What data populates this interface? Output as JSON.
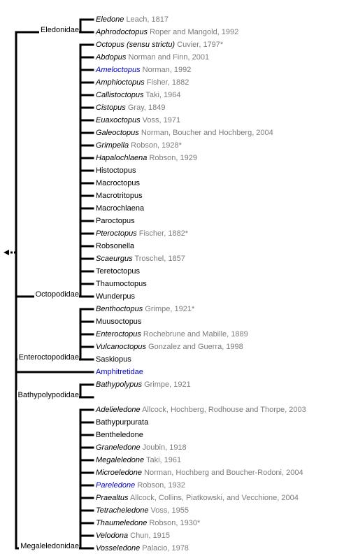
{
  "families": [
    {
      "name": "Eledonidae",
      "leaves": [
        {
          "genus": "Eledone",
          "authority": "Leach, 1817",
          "italic": true,
          "link": false
        },
        {
          "genus": "Aphrodoctopus",
          "authority": "Roper and Mangold, 1992",
          "italic": true,
          "link": false
        }
      ]
    },
    {
      "name": "Octopodidae",
      "leaves": [
        {
          "genus": "Octopus (sensu strictu)",
          "authority": "Cuvier, 1797*",
          "italic": true,
          "link": false
        },
        {
          "genus": "Abdopus",
          "authority": "Norman and Finn, 2001",
          "italic": true,
          "link": false
        },
        {
          "genus": "Ameloctopus",
          "authority": "Norman, 1992",
          "italic": true,
          "link": true
        },
        {
          "genus": "Amphioctopus",
          "authority": "Fisher, 1882",
          "italic": true,
          "link": false
        },
        {
          "genus": "Callistoctopus",
          "authority": "Taki, 1964",
          "italic": true,
          "link": false
        },
        {
          "genus": "Cistopus",
          "authority": "Gray, 1849",
          "italic": true,
          "link": false
        },
        {
          "genus": "Euaxoctopus",
          "authority": "Voss, 1971",
          "italic": true,
          "link": false
        },
        {
          "genus": "Galeoctopus",
          "authority": "Norman, Boucher and Hochberg, 2004",
          "italic": true,
          "link": false
        },
        {
          "genus": "Grimpella",
          "authority": "Robson, 1928*",
          "italic": true,
          "link": false
        },
        {
          "genus": "Hapalochlaena",
          "authority": "Robson, 1929",
          "italic": true,
          "link": false
        },
        {
          "genus": "Histoctopus",
          "authority": "",
          "italic": false,
          "link": false
        },
        {
          "genus": "Macroctopus",
          "authority": "",
          "italic": false,
          "link": false
        },
        {
          "genus": "Macrotritopus",
          "authority": "",
          "italic": false,
          "link": false
        },
        {
          "genus": "Macrochlaena",
          "authority": "",
          "italic": false,
          "link": false
        },
        {
          "genus": "Paroctopus",
          "authority": "",
          "italic": false,
          "link": false
        },
        {
          "genus": "Pteroctopus",
          "authority": "Fischer, 1882*",
          "italic": true,
          "link": false
        },
        {
          "genus": "Robsonella",
          "authority": "",
          "italic": false,
          "link": false
        },
        {
          "genus": "Scaeurgus",
          "authority": "Troschel, 1857",
          "italic": true,
          "link": false
        },
        {
          "genus": "Teretoctopus",
          "authority": "",
          "italic": false,
          "link": false
        },
        {
          "genus": "Thaumoctopus",
          "authority": "",
          "italic": false,
          "link": false
        },
        {
          "genus": "Wunderpus",
          "authority": "",
          "italic": false,
          "link": false
        }
      ]
    },
    {
      "name": "Enteroctopodidae",
      "leaves": [
        {
          "genus": "Benthoctopus",
          "authority": "Grimpe, 1921*",
          "italic": true,
          "link": false
        },
        {
          "genus": "Muusoctopus",
          "authority": "",
          "italic": false,
          "link": false
        },
        {
          "genus": "Enteroctopus",
          "authority": "Rochebrune and Mabille, 1889",
          "italic": true,
          "link": false
        },
        {
          "genus": "Vulcanoctopus",
          "authority": "Gonzalez and Guerra, 1998",
          "italic": true,
          "link": false
        },
        {
          "genus": "Saskiopus",
          "authority": "",
          "italic": false,
          "link": false
        }
      ]
    },
    {
      "name": "Amphitretidae",
      "direct": true,
      "link": true,
      "leaves": []
    },
    {
      "name": "Bathypolypodidae",
      "leaves": [
        {
          "genus": "Bathypolypus",
          "authority": "Grimpe, 1921",
          "italic": true,
          "link": false
        },
        {
          "genus": "",
          "authority": "",
          "italic": false,
          "link": false
        }
      ]
    },
    {
      "name": "Megaleledonidae",
      "leaves": [
        {
          "genus": "Adelieledone",
          "authority": "Allcock, Hochberg, Rodhouse and Thorpe, 2003",
          "italic": true,
          "link": false
        },
        {
          "genus": "Bathypurpurata",
          "authority": "",
          "italic": false,
          "link": false
        },
        {
          "genus": "Bentheledone",
          "authority": "",
          "italic": false,
          "link": false
        },
        {
          "genus": "Graneledone",
          "authority": "Joubin, 1918",
          "italic": true,
          "link": false
        },
        {
          "genus": "Megaleledone",
          "authority": "Taki, 1961",
          "italic": true,
          "link": false
        },
        {
          "genus": "Microeledone",
          "authority": "Norman, Hochberg and Boucher-Rodoni, 2004",
          "italic": true,
          "link": false
        },
        {
          "genus": "Pareledone",
          "authority": "Robson, 1932",
          "italic": true,
          "link": true
        },
        {
          "genus": "Praealtus",
          "authority": "Allcock, Collins, Piatkowski, and Vecchione, 2004",
          "italic": true,
          "link": false
        },
        {
          "genus": "Tetracheledone",
          "authority": "Voss, 1955",
          "italic": true,
          "link": false
        },
        {
          "genus": "Thaumeledone",
          "authority": "Robson, 1930*",
          "italic": true,
          "link": false
        },
        {
          "genus": "Velodona",
          "authority": "Chun, 1915",
          "italic": true,
          "link": false
        },
        {
          "genus": "Vosseledone",
          "authority": "Palacio, 1978",
          "italic": true,
          "link": false
        }
      ]
    }
  ]
}
